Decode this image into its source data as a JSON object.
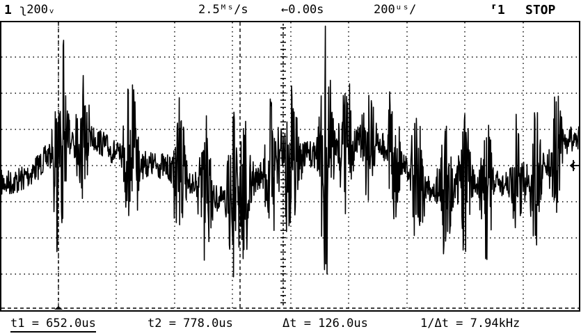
{
  "status_bar": {
    "channel": "1",
    "volts_div": "ʅ200ᵥ",
    "sample_rate": "2.5ᴹˢ/s",
    "delay": "←0.00s",
    "time_div": "200ᵘˢ/",
    "trigger": "⸢1",
    "run_state": "STOP"
  },
  "cursor_bar": {
    "t1": "t1 = 652.0us",
    "t2": "t2 = 778.0us",
    "delta_t": "Δt = 126.0us",
    "inv_delta_t": "1/Δt = 7.94kHz"
  },
  "colors": {
    "trace": "#000000",
    "background": "#ffffff",
    "grid": "#000000"
  },
  "icons": {
    "ground_marker": "ground-marker-icon",
    "trigger_marker": "trigger-level-icon"
  }
}
